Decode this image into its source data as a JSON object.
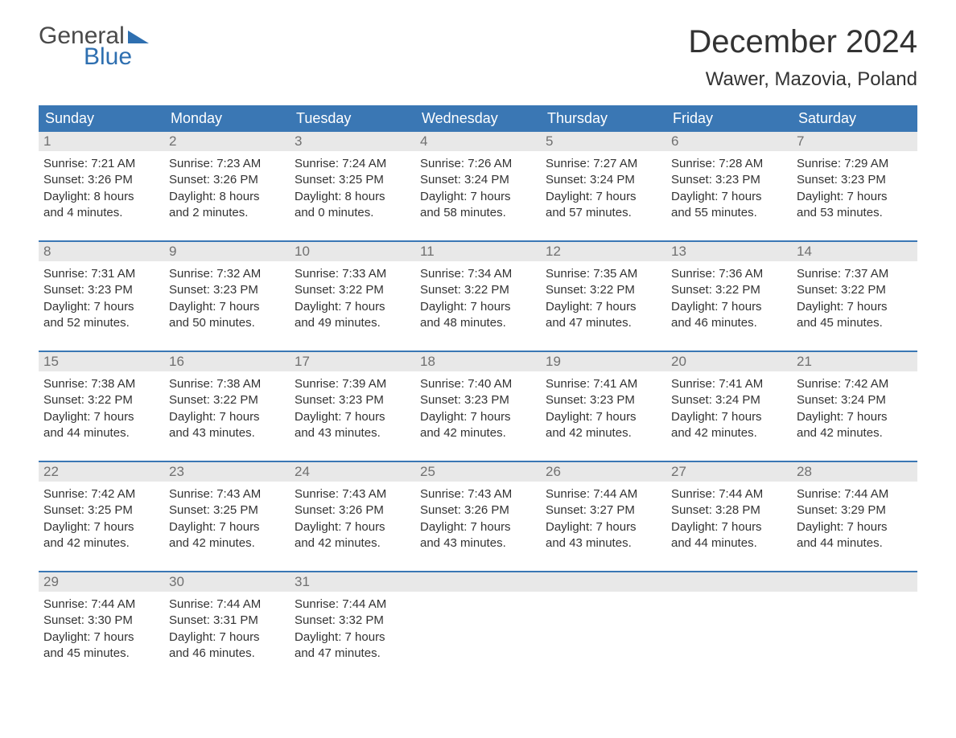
{
  "logo": {
    "word1": "General",
    "word2": "Blue"
  },
  "title": "December 2024",
  "location": "Wawer, Mazovia, Poland",
  "colors": {
    "header_bg": "#3a77b4",
    "header_text": "#ffffff",
    "daynum_bg": "#e8e8e8",
    "daynum_text": "#707070",
    "week_border": "#3a77b4",
    "body_text": "#333333",
    "logo_gray": "#4a4a4a",
    "logo_blue": "#2e6fb0",
    "page_bg": "#ffffff"
  },
  "typography": {
    "title_fontsize": 40,
    "location_fontsize": 24,
    "dayheader_fontsize": 18,
    "daynum_fontsize": 17,
    "body_fontsize": 15,
    "font_family": "Arial"
  },
  "day_names": [
    "Sunday",
    "Monday",
    "Tuesday",
    "Wednesday",
    "Thursday",
    "Friday",
    "Saturday"
  ],
  "labels": {
    "sunrise": "Sunrise:",
    "sunset": "Sunset:",
    "daylight": "Daylight:"
  },
  "weeks": [
    [
      {
        "n": "1",
        "sunrise": "7:21 AM",
        "sunset": "3:26 PM",
        "dl1": "8 hours",
        "dl2": "and 4 minutes."
      },
      {
        "n": "2",
        "sunrise": "7:23 AM",
        "sunset": "3:26 PM",
        "dl1": "8 hours",
        "dl2": "and 2 minutes."
      },
      {
        "n": "3",
        "sunrise": "7:24 AM",
        "sunset": "3:25 PM",
        "dl1": "8 hours",
        "dl2": "and 0 minutes."
      },
      {
        "n": "4",
        "sunrise": "7:26 AM",
        "sunset": "3:24 PM",
        "dl1": "7 hours",
        "dl2": "and 58 minutes."
      },
      {
        "n": "5",
        "sunrise": "7:27 AM",
        "sunset": "3:24 PM",
        "dl1": "7 hours",
        "dl2": "and 57 minutes."
      },
      {
        "n": "6",
        "sunrise": "7:28 AM",
        "sunset": "3:23 PM",
        "dl1": "7 hours",
        "dl2": "and 55 minutes."
      },
      {
        "n": "7",
        "sunrise": "7:29 AM",
        "sunset": "3:23 PM",
        "dl1": "7 hours",
        "dl2": "and 53 minutes."
      }
    ],
    [
      {
        "n": "8",
        "sunrise": "7:31 AM",
        "sunset": "3:23 PM",
        "dl1": "7 hours",
        "dl2": "and 52 minutes."
      },
      {
        "n": "9",
        "sunrise": "7:32 AM",
        "sunset": "3:23 PM",
        "dl1": "7 hours",
        "dl2": "and 50 minutes."
      },
      {
        "n": "10",
        "sunrise": "7:33 AM",
        "sunset": "3:22 PM",
        "dl1": "7 hours",
        "dl2": "and 49 minutes."
      },
      {
        "n": "11",
        "sunrise": "7:34 AM",
        "sunset": "3:22 PM",
        "dl1": "7 hours",
        "dl2": "and 48 minutes."
      },
      {
        "n": "12",
        "sunrise": "7:35 AM",
        "sunset": "3:22 PM",
        "dl1": "7 hours",
        "dl2": "and 47 minutes."
      },
      {
        "n": "13",
        "sunrise": "7:36 AM",
        "sunset": "3:22 PM",
        "dl1": "7 hours",
        "dl2": "and 46 minutes."
      },
      {
        "n": "14",
        "sunrise": "7:37 AM",
        "sunset": "3:22 PM",
        "dl1": "7 hours",
        "dl2": "and 45 minutes."
      }
    ],
    [
      {
        "n": "15",
        "sunrise": "7:38 AM",
        "sunset": "3:22 PM",
        "dl1": "7 hours",
        "dl2": "and 44 minutes."
      },
      {
        "n": "16",
        "sunrise": "7:38 AM",
        "sunset": "3:22 PM",
        "dl1": "7 hours",
        "dl2": "and 43 minutes."
      },
      {
        "n": "17",
        "sunrise": "7:39 AM",
        "sunset": "3:23 PM",
        "dl1": "7 hours",
        "dl2": "and 43 minutes."
      },
      {
        "n": "18",
        "sunrise": "7:40 AM",
        "sunset": "3:23 PM",
        "dl1": "7 hours",
        "dl2": "and 42 minutes."
      },
      {
        "n": "19",
        "sunrise": "7:41 AM",
        "sunset": "3:23 PM",
        "dl1": "7 hours",
        "dl2": "and 42 minutes."
      },
      {
        "n": "20",
        "sunrise": "7:41 AM",
        "sunset": "3:24 PM",
        "dl1": "7 hours",
        "dl2": "and 42 minutes."
      },
      {
        "n": "21",
        "sunrise": "7:42 AM",
        "sunset": "3:24 PM",
        "dl1": "7 hours",
        "dl2": "and 42 minutes."
      }
    ],
    [
      {
        "n": "22",
        "sunrise": "7:42 AM",
        "sunset": "3:25 PM",
        "dl1": "7 hours",
        "dl2": "and 42 minutes."
      },
      {
        "n": "23",
        "sunrise": "7:43 AM",
        "sunset": "3:25 PM",
        "dl1": "7 hours",
        "dl2": "and 42 minutes."
      },
      {
        "n": "24",
        "sunrise": "7:43 AM",
        "sunset": "3:26 PM",
        "dl1": "7 hours",
        "dl2": "and 42 minutes."
      },
      {
        "n": "25",
        "sunrise": "7:43 AM",
        "sunset": "3:26 PM",
        "dl1": "7 hours",
        "dl2": "and 43 minutes."
      },
      {
        "n": "26",
        "sunrise": "7:44 AM",
        "sunset": "3:27 PM",
        "dl1": "7 hours",
        "dl2": "and 43 minutes."
      },
      {
        "n": "27",
        "sunrise": "7:44 AM",
        "sunset": "3:28 PM",
        "dl1": "7 hours",
        "dl2": "and 44 minutes."
      },
      {
        "n": "28",
        "sunrise": "7:44 AM",
        "sunset": "3:29 PM",
        "dl1": "7 hours",
        "dl2": "and 44 minutes."
      }
    ],
    [
      {
        "n": "29",
        "sunrise": "7:44 AM",
        "sunset": "3:30 PM",
        "dl1": "7 hours",
        "dl2": "and 45 minutes."
      },
      {
        "n": "30",
        "sunrise": "7:44 AM",
        "sunset": "3:31 PM",
        "dl1": "7 hours",
        "dl2": "and 46 minutes."
      },
      {
        "n": "31",
        "sunrise": "7:44 AM",
        "sunset": "3:32 PM",
        "dl1": "7 hours",
        "dl2": "and 47 minutes."
      },
      {
        "empty": true
      },
      {
        "empty": true
      },
      {
        "empty": true
      },
      {
        "empty": true
      }
    ]
  ]
}
